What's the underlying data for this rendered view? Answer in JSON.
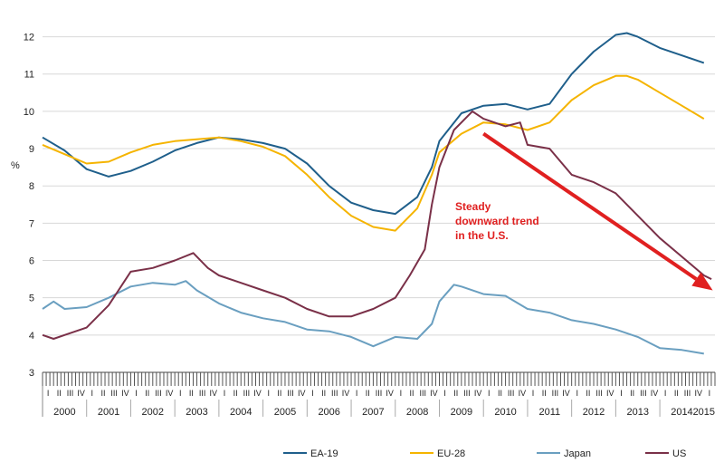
{
  "chart_data": {
    "type": "line",
    "ylabel": "%",
    "ylim": [
      3,
      12.5
    ],
    "yticks": [
      3,
      4,
      5,
      6,
      7,
      8,
      9,
      10,
      11,
      12
    ],
    "xlim": [
      2000.0,
      2015.25
    ],
    "years": [
      "2000",
      "2001",
      "2002",
      "2003",
      "2004",
      "2005",
      "2006",
      "2007",
      "2008",
      "2009",
      "2010",
      "2011",
      "2012",
      "2013",
      "2014",
      "2015"
    ],
    "quarter_labels": [
      "I",
      "II",
      "III",
      "IV"
    ],
    "grid": true,
    "legend_position": "bottom",
    "colors": {
      "ea19": "#1f5f8b",
      "eu28": "#f5b400",
      "japan": "#6a9fc0",
      "us": "#7a3048",
      "annotation": "#e02020"
    },
    "annotation": {
      "lines": [
        "Steady",
        "downward trend",
        "in  the U.S."
      ],
      "arrow_from": [
        2010.0,
        9.4
      ],
      "arrow_to": [
        2015.2,
        5.2
      ]
    },
    "series": [
      {
        "name": "EA-19",
        "color": "#1f5f8b",
        "points": [
          [
            2000.0,
            9.3
          ],
          [
            2000.5,
            8.95
          ],
          [
            2001.0,
            8.45
          ],
          [
            2001.5,
            8.25
          ],
          [
            2002.0,
            8.4
          ],
          [
            2002.5,
            8.65
          ],
          [
            2003.0,
            8.95
          ],
          [
            2003.5,
            9.15
          ],
          [
            2004.0,
            9.3
          ],
          [
            2004.5,
            9.25
          ],
          [
            2005.0,
            9.15
          ],
          [
            2005.5,
            9.0
          ],
          [
            2006.0,
            8.6
          ],
          [
            2006.5,
            8.0
          ],
          [
            2007.0,
            7.55
          ],
          [
            2007.5,
            7.35
          ],
          [
            2008.0,
            7.25
          ],
          [
            2008.5,
            7.7
          ],
          [
            2008.83,
            8.5
          ],
          [
            2009.0,
            9.2
          ],
          [
            2009.5,
            9.95
          ],
          [
            2010.0,
            10.15
          ],
          [
            2010.5,
            10.2
          ],
          [
            2011.0,
            10.05
          ],
          [
            2011.5,
            10.2
          ],
          [
            2012.0,
            11.0
          ],
          [
            2012.5,
            11.6
          ],
          [
            2013.0,
            12.05
          ],
          [
            2013.25,
            12.1
          ],
          [
            2013.5,
            12.0
          ],
          [
            2014.0,
            11.7
          ],
          [
            2014.5,
            11.5
          ],
          [
            2015.0,
            11.3
          ]
        ]
      },
      {
        "name": "EU-28",
        "color": "#f5b400",
        "points": [
          [
            2000.0,
            9.1
          ],
          [
            2000.5,
            8.85
          ],
          [
            2001.0,
            8.6
          ],
          [
            2001.5,
            8.65
          ],
          [
            2002.0,
            8.9
          ],
          [
            2002.5,
            9.1
          ],
          [
            2003.0,
            9.2
          ],
          [
            2003.5,
            9.25
          ],
          [
            2004.0,
            9.3
          ],
          [
            2004.5,
            9.2
          ],
          [
            2005.0,
            9.05
          ],
          [
            2005.5,
            8.8
          ],
          [
            2006.0,
            8.3
          ],
          [
            2006.5,
            7.7
          ],
          [
            2007.0,
            7.2
          ],
          [
            2007.5,
            6.9
          ],
          [
            2008.0,
            6.8
          ],
          [
            2008.5,
            7.4
          ],
          [
            2008.83,
            8.3
          ],
          [
            2009.0,
            8.9
          ],
          [
            2009.5,
            9.4
          ],
          [
            2010.0,
            9.7
          ],
          [
            2010.5,
            9.65
          ],
          [
            2011.0,
            9.5
          ],
          [
            2011.5,
            9.7
          ],
          [
            2012.0,
            10.3
          ],
          [
            2012.5,
            10.7
          ],
          [
            2013.0,
            10.95
          ],
          [
            2013.25,
            10.95
          ],
          [
            2013.5,
            10.85
          ],
          [
            2014.0,
            10.5
          ],
          [
            2014.5,
            10.15
          ],
          [
            2015.0,
            9.8
          ]
        ]
      },
      {
        "name": "Japan",
        "color": "#6a9fc0",
        "points": [
          [
            2000.0,
            4.7
          ],
          [
            2000.25,
            4.9
          ],
          [
            2000.5,
            4.7
          ],
          [
            2001.0,
            4.75
          ],
          [
            2001.5,
            5.0
          ],
          [
            2002.0,
            5.3
          ],
          [
            2002.5,
            5.4
          ],
          [
            2003.0,
            5.35
          ],
          [
            2003.25,
            5.45
          ],
          [
            2003.5,
            5.2
          ],
          [
            2004.0,
            4.85
          ],
          [
            2004.5,
            4.6
          ],
          [
            2005.0,
            4.45
          ],
          [
            2005.5,
            4.35
          ],
          [
            2006.0,
            4.15
          ],
          [
            2006.5,
            4.1
          ],
          [
            2007.0,
            3.95
          ],
          [
            2007.5,
            3.7
          ],
          [
            2008.0,
            3.95
          ],
          [
            2008.5,
            3.9
          ],
          [
            2008.83,
            4.3
          ],
          [
            2009.0,
            4.9
          ],
          [
            2009.33,
            5.35
          ],
          [
            2009.5,
            5.3
          ],
          [
            2010.0,
            5.1
          ],
          [
            2010.5,
            5.05
          ],
          [
            2011.0,
            4.7
          ],
          [
            2011.5,
            4.6
          ],
          [
            2012.0,
            4.4
          ],
          [
            2012.5,
            4.3
          ],
          [
            2013.0,
            4.15
          ],
          [
            2013.5,
            3.95
          ],
          [
            2014.0,
            3.65
          ],
          [
            2014.5,
            3.6
          ],
          [
            2015.0,
            3.5
          ]
        ]
      },
      {
        "name": "US",
        "color": "#7a3048",
        "points": [
          [
            2000.0,
            4.0
          ],
          [
            2000.25,
            3.9
          ],
          [
            2000.5,
            4.0
          ],
          [
            2001.0,
            4.2
          ],
          [
            2001.5,
            4.8
          ],
          [
            2002.0,
            5.7
          ],
          [
            2002.5,
            5.8
          ],
          [
            2003.0,
            6.0
          ],
          [
            2003.42,
            6.2
          ],
          [
            2003.75,
            5.8
          ],
          [
            2004.0,
            5.6
          ],
          [
            2004.5,
            5.4
          ],
          [
            2005.0,
            5.2
          ],
          [
            2005.5,
            5.0
          ],
          [
            2006.0,
            4.7
          ],
          [
            2006.5,
            4.5
          ],
          [
            2007.0,
            4.5
          ],
          [
            2007.5,
            4.7
          ],
          [
            2008.0,
            5.0
          ],
          [
            2008.33,
            5.6
          ],
          [
            2008.67,
            6.3
          ],
          [
            2008.83,
            7.5
          ],
          [
            2009.0,
            8.5
          ],
          [
            2009.33,
            9.5
          ],
          [
            2009.75,
            10.0
          ],
          [
            2010.0,
            9.8
          ],
          [
            2010.5,
            9.6
          ],
          [
            2010.83,
            9.7
          ],
          [
            2011.0,
            9.1
          ],
          [
            2011.5,
            9.0
          ],
          [
            2012.0,
            8.3
          ],
          [
            2012.5,
            8.1
          ],
          [
            2013.0,
            7.8
          ],
          [
            2013.5,
            7.2
          ],
          [
            2014.0,
            6.6
          ],
          [
            2014.5,
            6.1
          ],
          [
            2015.0,
            5.6
          ],
          [
            2015.17,
            5.5
          ]
        ]
      }
    ]
  }
}
